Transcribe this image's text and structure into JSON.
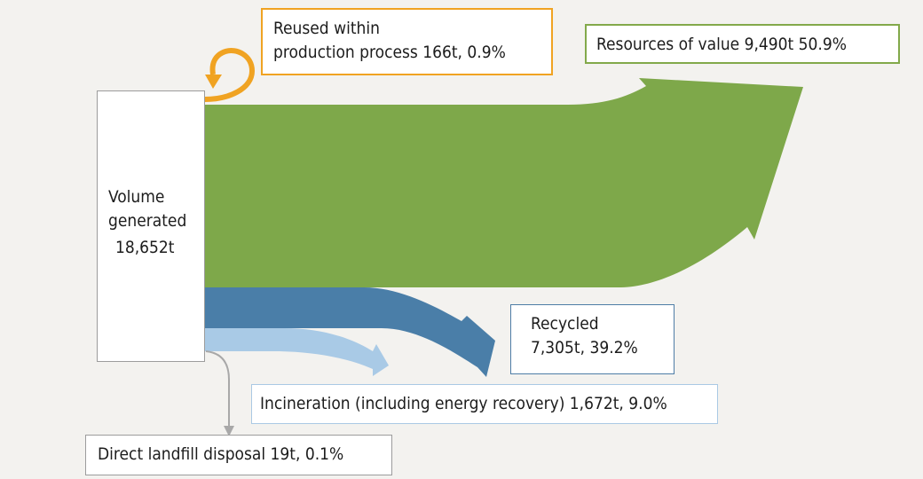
{
  "colors": {
    "resources": "#7ea84a",
    "recycled": "#4a7ea8",
    "incineration": "#a9cae6",
    "landfill": "#a8a8a8",
    "reused": "#f0a322"
  },
  "source": {
    "line1": "Volume",
    "line2": "generated",
    "amount": "18,652t"
  },
  "flows": {
    "reused": {
      "line1": "Reused within",
      "line2": "production process 166t, 0.9%",
      "tonnes": 166,
      "percent": 0.9
    },
    "resources": {
      "label": "Resources of value 9,490t  50.9%",
      "tonnes": 9490,
      "percent": 50.9
    },
    "recycled": {
      "line1": "Recycled",
      "line2": "7,305t, 39.2%",
      "tonnes": 7305,
      "percent": 39.2
    },
    "incineration": {
      "label": "Incineration (including energy recovery) 1,672t, 9.0%",
      "tonnes": 1672,
      "percent": 9.0
    },
    "landfill": {
      "label": "Direct landfill disposal 19t, 0.1%",
      "tonnes": 19,
      "percent": 0.1
    }
  }
}
